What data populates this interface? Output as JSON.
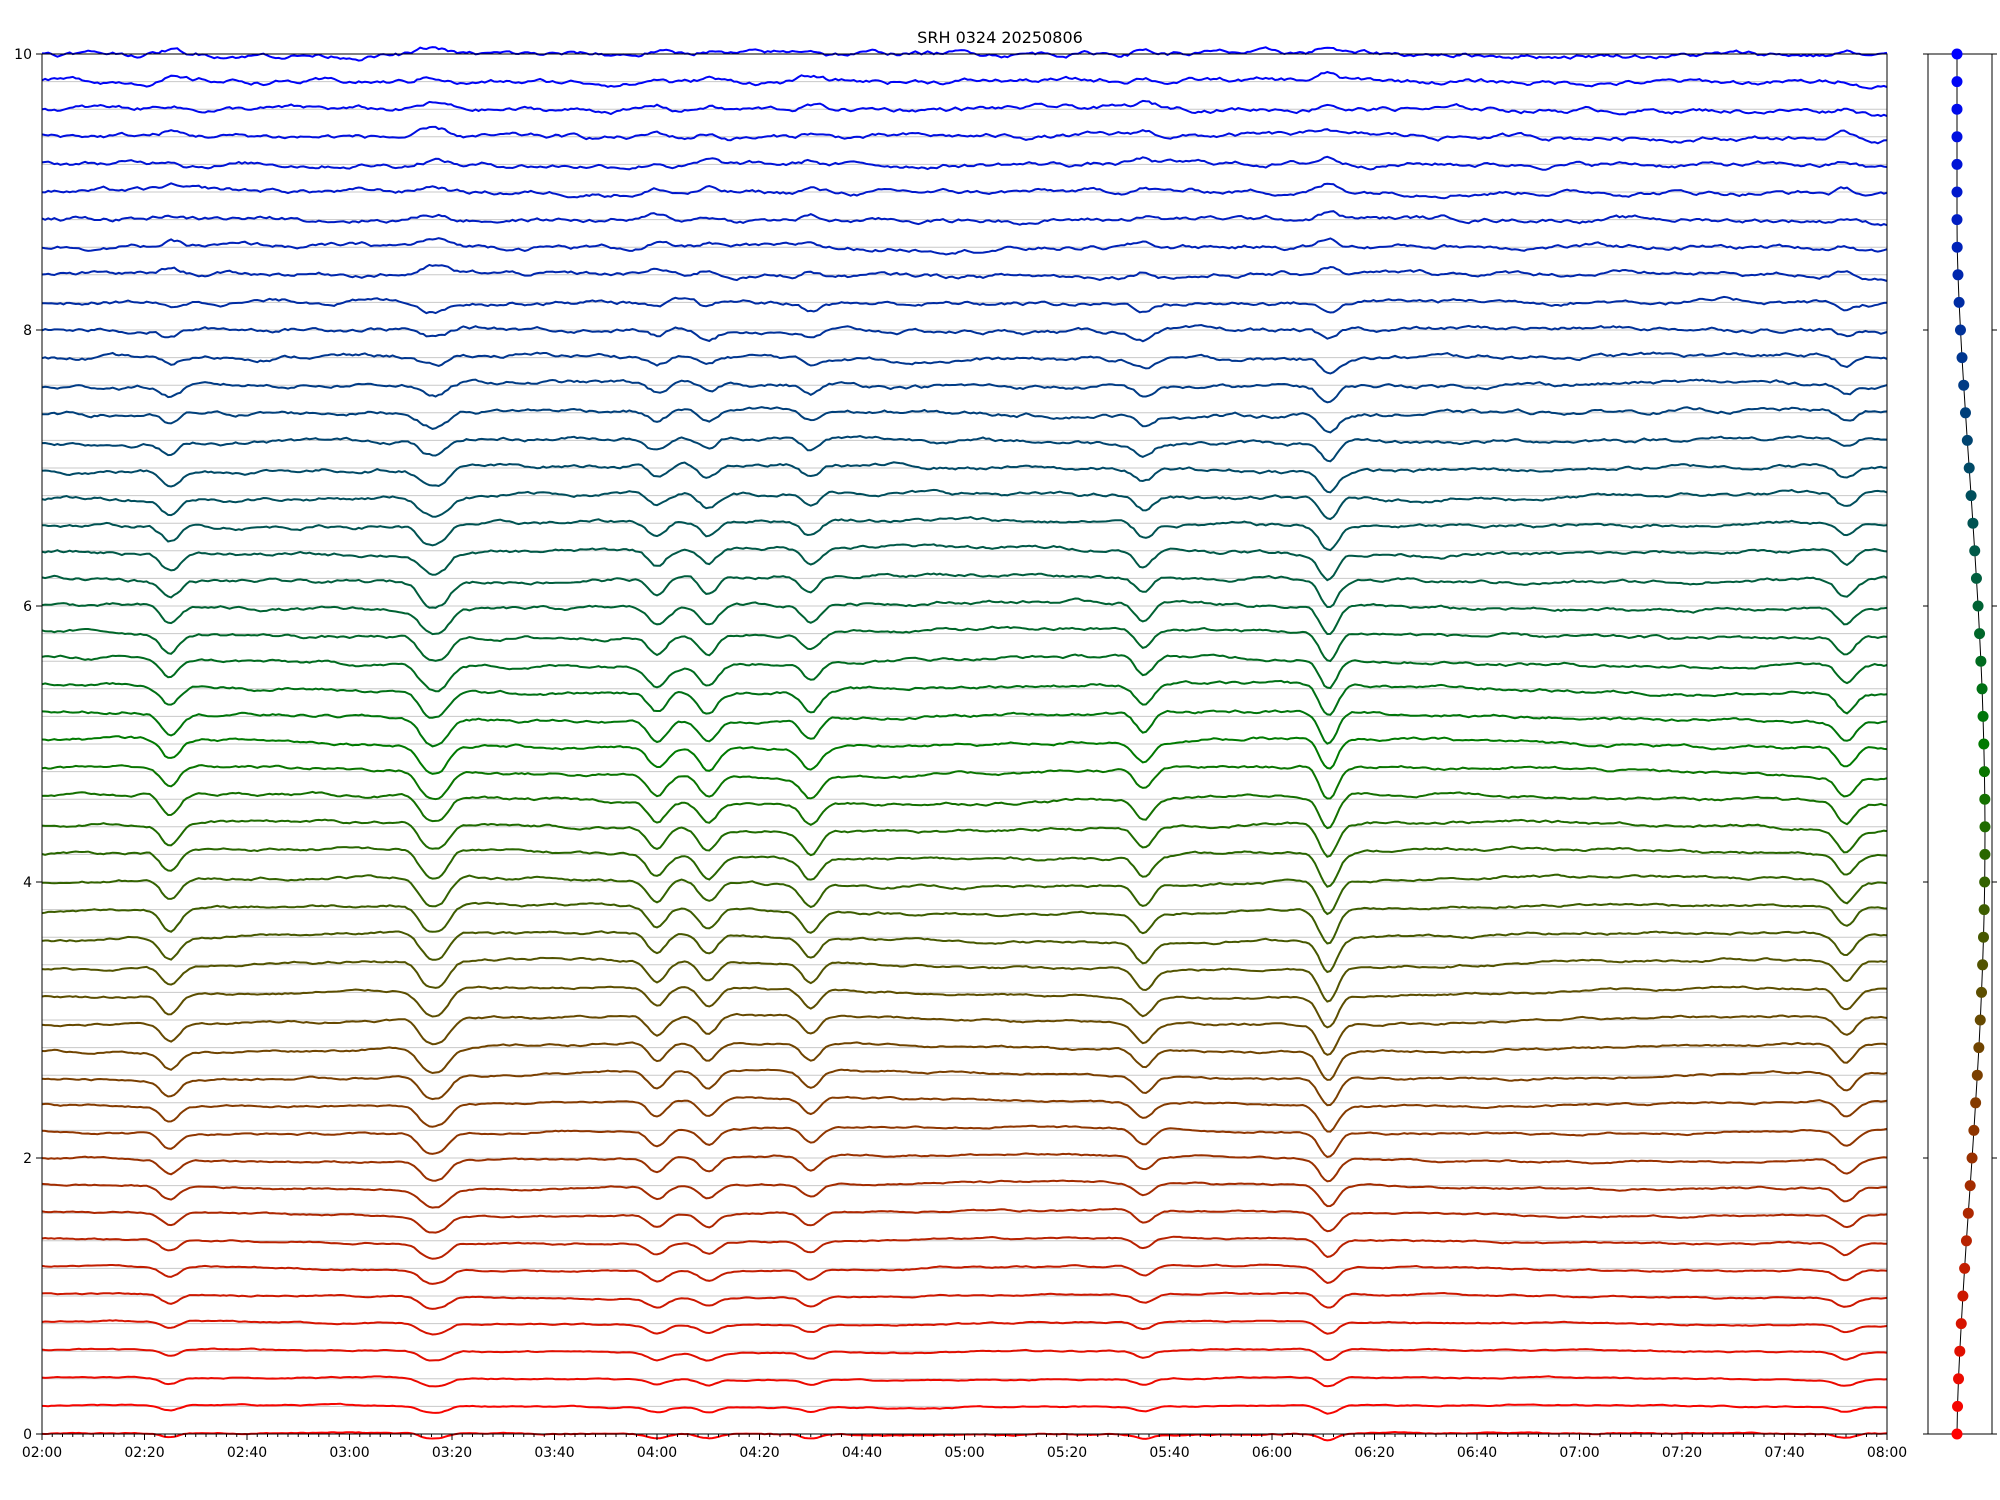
{
  "chart_data": [
    {
      "type": "line",
      "title": "SRH 0324 20250806",
      "xlabel": "",
      "ylabel": "",
      "x_range": [
        "02:00",
        "08:00"
      ],
      "x_ticks": [
        "02:00",
        "02:20",
        "02:40",
        "03:00",
        "03:20",
        "03:40",
        "04:00",
        "04:20",
        "04:40",
        "05:00",
        "05:20",
        "05:40",
        "06:00",
        "06:20",
        "06:40",
        "07:00",
        "07:20",
        "07:40",
        "08:00"
      ],
      "ylim": [
        0,
        10
      ],
      "y_ticks": [
        "0",
        "2",
        "4",
        "6",
        "8",
        "10"
      ],
      "grid": "horizontal lines at each trace baseline",
      "legend": "none",
      "n_traces": 51,
      "baseline_start": 0,
      "baseline_step": 0.2,
      "color_start": "#ff0000",
      "color_mid": "#007a00",
      "color_end": "#0000ff",
      "events": [
        {
          "time": "02:25",
          "label": ""
        },
        {
          "time": "03:15",
          "label": ""
        },
        {
          "time": "03:18",
          "label": ""
        },
        {
          "time": "04:00",
          "label": ""
        },
        {
          "time": "04:10",
          "label": ""
        },
        {
          "time": "04:30",
          "label": ""
        },
        {
          "time": "05:35",
          "label": ""
        },
        {
          "time": "06:11",
          "label": ""
        },
        {
          "time": "07:52",
          "label": ""
        }
      ]
    },
    {
      "type": "scatter",
      "title": "",
      "description_of_points": "one marker per trace, baseline vs small offset, colored like the traces",
      "y_range": [
        0,
        10
      ]
    }
  ]
}
